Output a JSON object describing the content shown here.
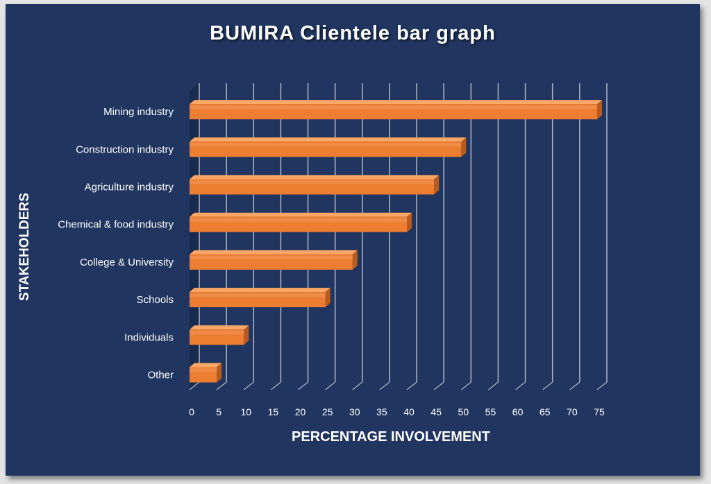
{
  "chart_data": {
    "type": "bar",
    "orientation": "horizontal",
    "title": "BUMIRA Clientele bar graph",
    "xlabel": "PERCENTAGE INVOLVEMENT",
    "ylabel": "STAKEHOLDERS",
    "categories": [
      "Mining industry",
      "Construction industry",
      "Agriculture industry",
      "Chemical & food industry",
      "College & University",
      "Schools",
      "Individuals",
      "Other"
    ],
    "values": [
      75,
      50,
      45,
      40,
      30,
      25,
      10,
      5
    ],
    "xlim": [
      0,
      75
    ],
    "xticks": [
      0,
      5,
      10,
      15,
      20,
      25,
      30,
      35,
      40,
      45,
      50,
      55,
      60,
      65,
      70,
      75
    ],
    "grid": true,
    "legend": "none",
    "colors": {
      "bar": "#ed7d31",
      "bar_top": "#f9a667",
      "bar_side": "#b95a1e",
      "background": "#20355f",
      "grid": "#a8b0bd"
    }
  }
}
